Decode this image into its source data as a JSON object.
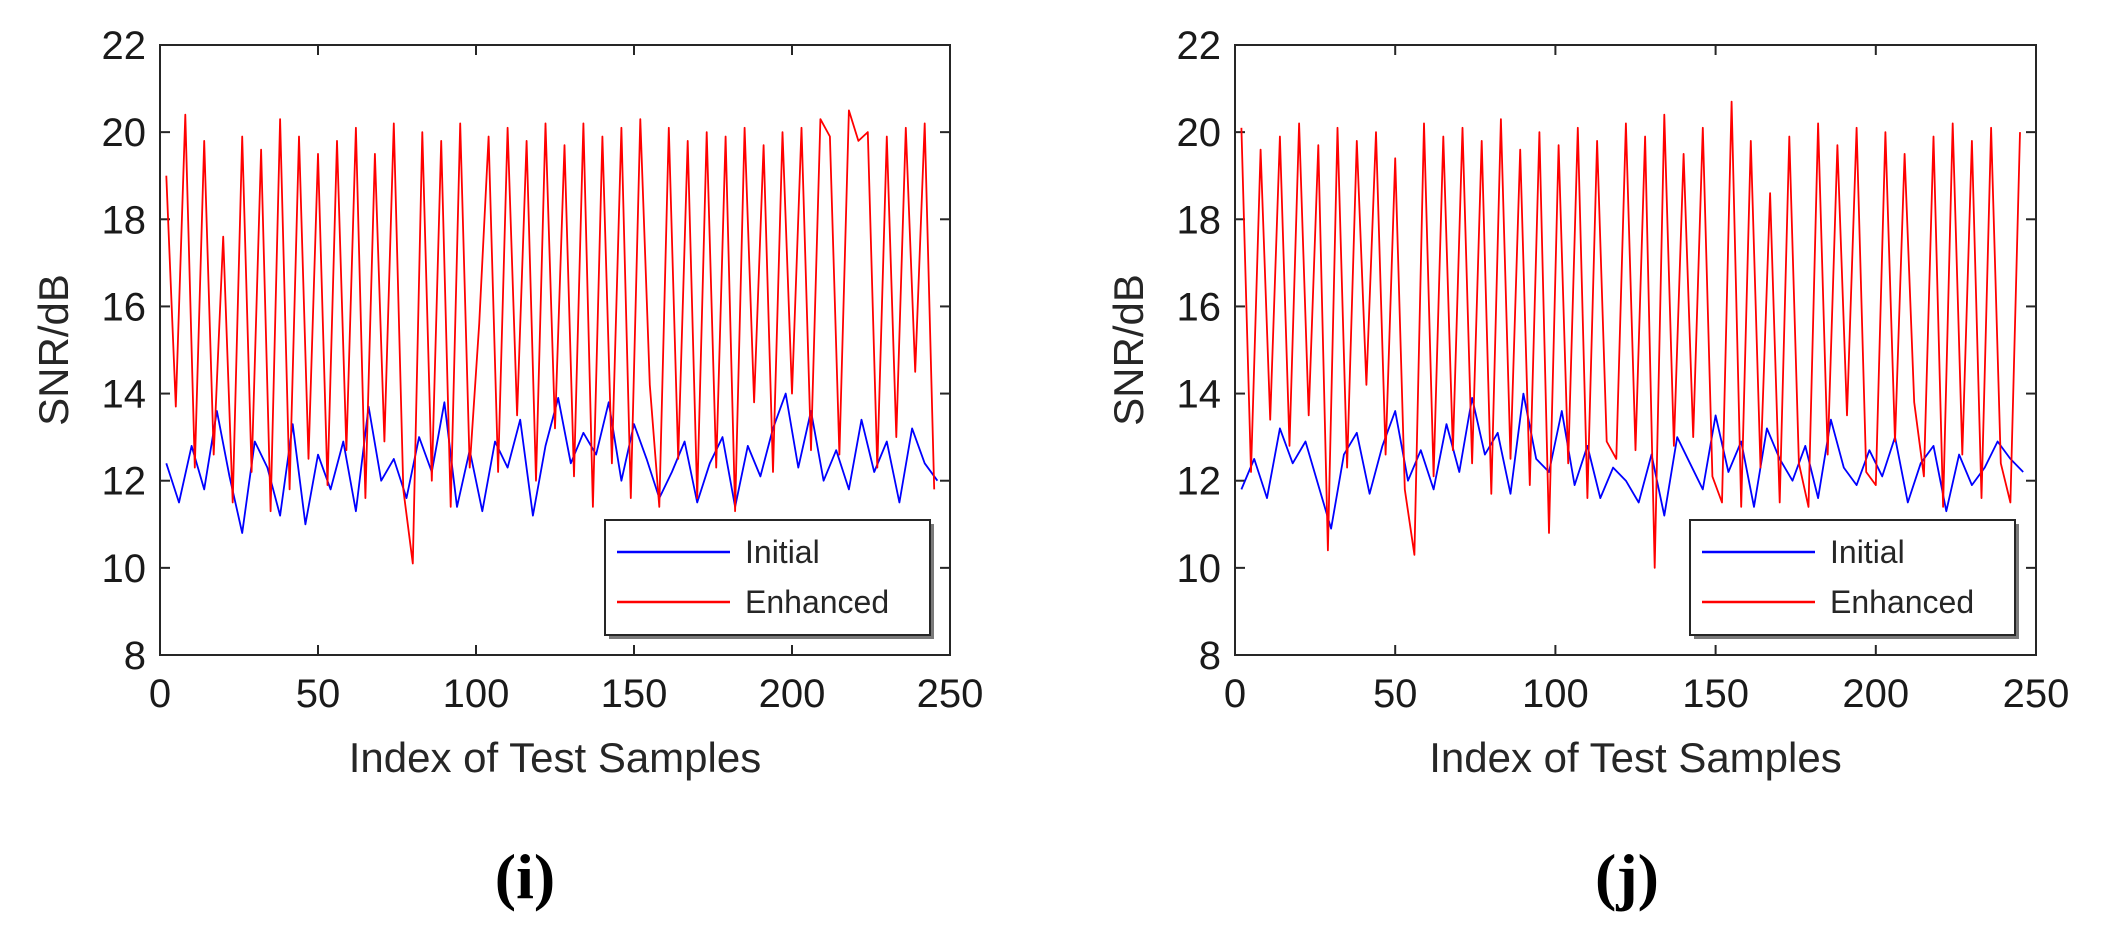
{
  "colors": {
    "initial": "#0000ff",
    "enhanced": "#ff0000",
    "axis": "#262626"
  },
  "chart_data": [
    {
      "type": "line",
      "panel_label": "(i)",
      "xlabel": "Index of Test Samples",
      "ylabel": "SNR/dB",
      "xlim": [
        0,
        250
      ],
      "ylim": [
        8,
        22
      ],
      "xticks": [
        0,
        50,
        100,
        150,
        200,
        250
      ],
      "yticks": [
        8,
        10,
        12,
        14,
        16,
        18,
        20,
        22
      ],
      "legend_position": "bottom-right",
      "series": [
        {
          "name": "Initial",
          "color": "#0000ff",
          "x": [
            2,
            6,
            10,
            14,
            18,
            22,
            26,
            30,
            34,
            38,
            42,
            46,
            50,
            54,
            58,
            62,
            66,
            70,
            74,
            78,
            82,
            86,
            90,
            94,
            98,
            102,
            106,
            110,
            114,
            118,
            122,
            126,
            130,
            134,
            138,
            142,
            146,
            150,
            154,
            158,
            162,
            166,
            170,
            174,
            178,
            182,
            186,
            190,
            194,
            198,
            202,
            206,
            210,
            214,
            218,
            222,
            226,
            230,
            234,
            238,
            242,
            246
          ],
          "y": [
            12.4,
            11.5,
            12.8,
            11.8,
            13.6,
            12.1,
            10.8,
            12.9,
            12.3,
            11.2,
            13.3,
            11.0,
            12.6,
            11.8,
            12.9,
            11.3,
            13.7,
            12.0,
            12.5,
            11.6,
            13.0,
            12.2,
            13.8,
            11.4,
            12.7,
            11.3,
            12.9,
            12.3,
            13.4,
            11.2,
            12.8,
            13.9,
            12.4,
            13.1,
            12.6,
            13.8,
            12.0,
            13.3,
            12.5,
            11.6,
            12.2,
            12.9,
            11.5,
            12.4,
            13.0,
            11.4,
            12.8,
            12.1,
            13.2,
            14.0,
            12.3,
            13.6,
            12.0,
            12.7,
            11.8,
            13.4,
            12.2,
            12.9,
            11.5,
            13.2,
            12.4,
            12.0
          ]
        },
        {
          "name": "Enhanced",
          "color": "#ff0000",
          "x": [
            2,
            5,
            8,
            11,
            14,
            17,
            20,
            23,
            26,
            29,
            32,
            35,
            38,
            41,
            44,
            47,
            50,
            53,
            56,
            59,
            62,
            65,
            68,
            71,
            74,
            77,
            80,
            83,
            86,
            89,
            92,
            95,
            98,
            101,
            104,
            107,
            110,
            113,
            116,
            119,
            122,
            125,
            128,
            131,
            134,
            137,
            140,
            143,
            146,
            149,
            152,
            155,
            158,
            161,
            164,
            167,
            170,
            173,
            176,
            179,
            182,
            185,
            188,
            191,
            194,
            197,
            200,
            203,
            206,
            209,
            212,
            215,
            218,
            221,
            224,
            227,
            230,
            233,
            236,
            239,
            242,
            245
          ],
          "y": [
            19.0,
            13.7,
            20.4,
            12.3,
            19.8,
            12.6,
            17.6,
            11.5,
            19.9,
            12.2,
            19.6,
            11.3,
            20.3,
            11.8,
            19.9,
            12.5,
            19.5,
            11.9,
            19.8,
            12.7,
            20.1,
            11.6,
            19.5,
            12.9,
            20.2,
            11.8,
            10.1,
            20.0,
            12.0,
            19.8,
            11.4,
            20.2,
            12.3,
            15.6,
            19.9,
            12.2,
            20.1,
            13.5,
            19.8,
            12.0,
            20.2,
            13.2,
            19.7,
            12.1,
            20.2,
            11.4,
            19.9,
            12.4,
            20.1,
            11.6,
            20.3,
            14.2,
            11.4,
            20.1,
            12.5,
            19.8,
            11.6,
            20.0,
            12.3,
            19.9,
            11.3,
            20.1,
            13.8,
            19.7,
            12.2,
            20.0,
            14.0,
            20.1,
            12.7,
            20.3,
            19.9,
            12.6,
            20.5,
            19.8,
            20.0,
            12.3,
            19.9,
            13.0,
            20.1,
            14.5,
            20.2,
            11.8
          ]
        }
      ]
    },
    {
      "type": "line",
      "panel_label": "(j)",
      "xlabel": "Index of Test Samples",
      "ylabel": "SNR/dB",
      "xlim": [
        0,
        250
      ],
      "ylim": [
        8,
        22
      ],
      "xticks": [
        0,
        50,
        100,
        150,
        200,
        250
      ],
      "yticks": [
        8,
        10,
        12,
        14,
        16,
        18,
        20,
        22
      ],
      "legend_position": "bottom-right",
      "series": [
        {
          "name": "Initial",
          "color": "#0000ff",
          "x": [
            2,
            6,
            10,
            14,
            18,
            22,
            26,
            30,
            34,
            38,
            42,
            46,
            50,
            54,
            58,
            62,
            66,
            70,
            74,
            78,
            82,
            86,
            90,
            94,
            98,
            102,
            106,
            110,
            114,
            118,
            122,
            126,
            130,
            134,
            138,
            142,
            146,
            150,
            154,
            158,
            162,
            166,
            170,
            174,
            178,
            182,
            186,
            190,
            194,
            198,
            202,
            206,
            210,
            214,
            218,
            222,
            226,
            230,
            234,
            238,
            242,
            246
          ],
          "y": [
            11.8,
            12.5,
            11.6,
            13.2,
            12.4,
            12.9,
            11.9,
            10.9,
            12.6,
            13.1,
            11.7,
            12.8,
            13.6,
            12.0,
            12.7,
            11.8,
            13.3,
            12.2,
            13.9,
            12.6,
            13.1,
            11.7,
            14.0,
            12.5,
            12.2,
            13.6,
            11.9,
            12.8,
            11.6,
            12.3,
            12.0,
            11.5,
            12.6,
            11.2,
            13.0,
            12.4,
            11.8,
            13.5,
            12.2,
            12.9,
            11.4,
            13.2,
            12.5,
            12.0,
            12.8,
            11.6,
            13.4,
            12.3,
            11.9,
            12.7,
            12.1,
            13.0,
            11.5,
            12.4,
            12.8,
            11.3,
            12.6,
            11.9,
            12.3,
            12.9,
            12.5,
            12.2
          ]
        },
        {
          "name": "Enhanced",
          "color": "#ff0000",
          "x": [
            2,
            5,
            8,
            11,
            14,
            17,
            20,
            23,
            26,
            29,
            32,
            35,
            38,
            41,
            44,
            47,
            50,
            53,
            56,
            59,
            62,
            65,
            68,
            71,
            74,
            77,
            80,
            83,
            86,
            89,
            92,
            95,
            98,
            101,
            104,
            107,
            110,
            113,
            116,
            119,
            122,
            125,
            128,
            131,
            134,
            137,
            140,
            143,
            146,
            149,
            152,
            155,
            158,
            161,
            164,
            167,
            170,
            173,
            176,
            179,
            182,
            185,
            188,
            191,
            194,
            197,
            200,
            203,
            206,
            209,
            212,
            215,
            218,
            221,
            224,
            227,
            230,
            233,
            236,
            239,
            242,
            245
          ],
          "y": [
            20.1,
            12.2,
            19.6,
            13.4,
            19.9,
            12.8,
            20.2,
            13.5,
            19.7,
            10.4,
            20.1,
            12.3,
            19.8,
            14.2,
            20.0,
            12.6,
            19.4,
            11.8,
            10.3,
            20.2,
            12.1,
            19.9,
            12.7,
            20.1,
            12.4,
            19.8,
            11.7,
            20.3,
            12.5,
            19.6,
            11.9,
            20.0,
            10.8,
            19.7,
            12.4,
            20.1,
            11.6,
            19.8,
            12.9,
            12.5,
            20.2,
            12.7,
            19.9,
            10.0,
            20.4,
            12.8,
            19.5,
            13.0,
            20.1,
            12.1,
            11.5,
            20.7,
            11.4,
            19.8,
            12.3,
            18.6,
            11.5,
            19.9,
            12.4,
            11.4,
            20.2,
            12.6,
            19.7,
            13.5,
            20.1,
            12.2,
            11.9,
            20.0,
            12.9,
            19.5,
            13.8,
            12.1,
            19.9,
            11.4,
            20.2,
            12.6,
            19.8,
            11.6,
            20.1,
            12.4,
            11.5,
            20.0
          ]
        }
      ]
    }
  ]
}
